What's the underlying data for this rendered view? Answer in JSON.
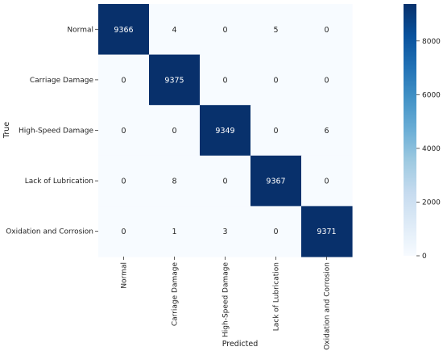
{
  "chart_data": {
    "type": "heatmap",
    "title": "",
    "xlabel": "Predicted",
    "ylabel": "True",
    "x_categories": [
      "Normal",
      "Carriage Damage",
      "High-Speed Damage",
      "Lack of Lubrication",
      "Oxidation and Corrosion"
    ],
    "y_categories": [
      "Normal",
      "Carriage Damage",
      "High-Speed Damage",
      "Lack of Lubrication",
      "Oxidation and Corrosion"
    ],
    "values": [
      [
        9366,
        4,
        0,
        5,
        0
      ],
      [
        0,
        9375,
        0,
        0,
        0
      ],
      [
        0,
        0,
        9349,
        0,
        6
      ],
      [
        0,
        8,
        0,
        9367,
        0
      ],
      [
        0,
        1,
        3,
        0,
        9371
      ]
    ],
    "colorbar": {
      "min": 0,
      "max": 9375,
      "ticks": [
        0,
        2000,
        4000,
        6000,
        8000
      ],
      "tick_labels": [
        "0",
        "2000",
        "4000",
        "6000",
        "8000"
      ]
    },
    "colormap": "Blues",
    "colors": {
      "low": "#f7fbff",
      "high": "#08306b"
    }
  }
}
